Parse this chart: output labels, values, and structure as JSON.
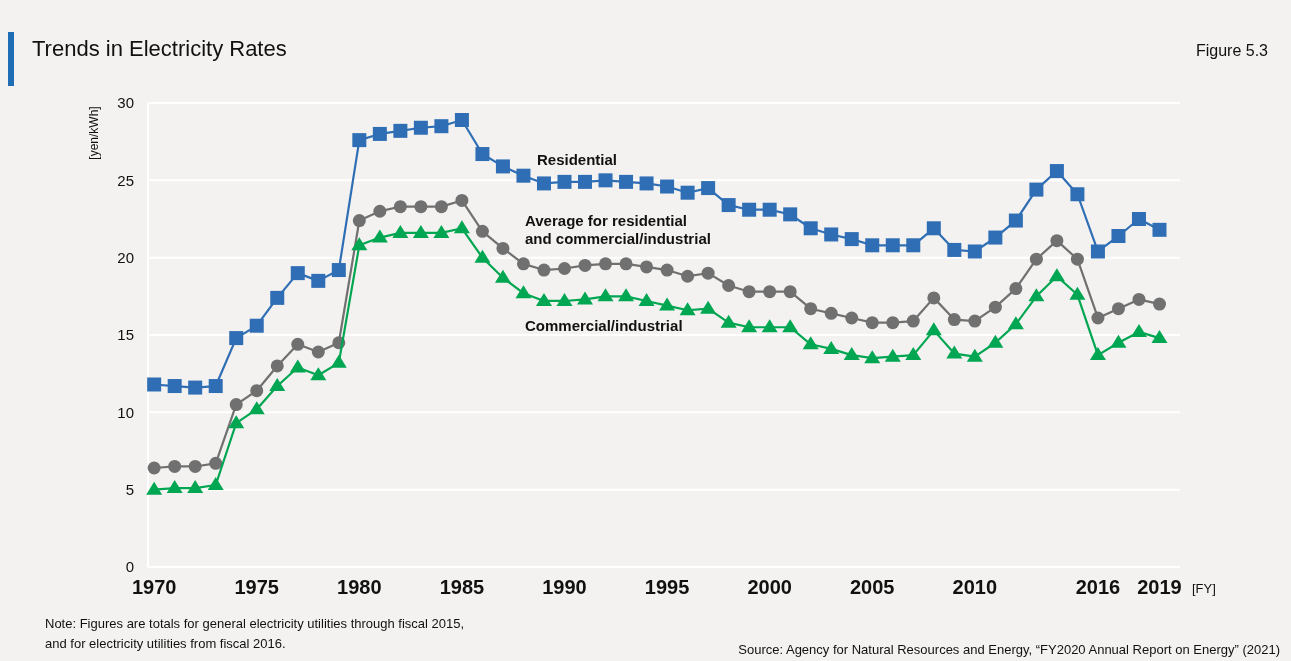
{
  "chart_data": {
    "type": "line",
    "title": "Trends in Electricity Rates",
    "ylabel": "[yen/kWh]",
    "xlabel": "[FY]",
    "annotations": [
      "Figure 5.3",
      "Note: Figures are totals for general electricity utilities through fiscal 2015,\nand for electricity utilities from fiscal 2016.",
      "Source: Agency for Natural Resources and Energy, “FY2020 Annual Report on Energy” (2021)"
    ],
    "x": [
      1970,
      1971,
      1972,
      1973,
      1974,
      1975,
      1976,
      1977,
      1978,
      1979,
      1980,
      1981,
      1982,
      1983,
      1984,
      1985,
      1986,
      1987,
      1988,
      1989,
      1990,
      1991,
      1992,
      1993,
      1994,
      1995,
      1996,
      1997,
      1998,
      1999,
      2000,
      2001,
      2002,
      2003,
      2004,
      2005,
      2006,
      2007,
      2008,
      2009,
      2010,
      2011,
      2012,
      2013,
      2014,
      2015,
      2016,
      2017,
      2018,
      2019
    ],
    "series": [
      {
        "name": "Residential",
        "color": "#2f6eb5",
        "marker": "square",
        "values": [
          11.8,
          11.7,
          11.6,
          11.7,
          14.8,
          15.6,
          17.4,
          19.0,
          18.5,
          19.2,
          27.6,
          28.0,
          28.2,
          28.4,
          28.5,
          28.9,
          26.7,
          25.9,
          25.3,
          24.8,
          24.9,
          24.9,
          25.0,
          24.9,
          24.8,
          24.6,
          24.2,
          24.5,
          23.4,
          23.1,
          23.1,
          22.8,
          21.9,
          21.5,
          21.2,
          20.8,
          20.8,
          20.8,
          21.9,
          20.5,
          20.4,
          21.3,
          22.4,
          24.4,
          25.6,
          24.1,
          20.4,
          21.4,
          22.5,
          21.8
        ]
      },
      {
        "name": "Average for residential\nand commercial/industrial",
        "color": "#707070",
        "marker": "circle",
        "values": [
          6.4,
          6.5,
          6.5,
          6.7,
          10.5,
          11.4,
          13.0,
          14.4,
          13.9,
          14.5,
          22.4,
          23.0,
          23.3,
          23.3,
          23.3,
          23.7,
          21.7,
          20.6,
          19.6,
          19.2,
          19.3,
          19.5,
          19.6,
          19.6,
          19.4,
          19.2,
          18.8,
          19.0,
          18.2,
          17.8,
          17.8,
          17.8,
          16.7,
          16.4,
          16.1,
          15.8,
          15.8,
          15.9,
          17.4,
          16.0,
          15.9,
          16.8,
          18.0,
          19.9,
          21.1,
          19.9,
          16.1,
          16.7,
          17.3,
          17.0
        ]
      },
      {
        "name": "Commercial/industrial",
        "color": "#00a651",
        "marker": "triangle",
        "values": [
          5.0,
          5.1,
          5.1,
          5.3,
          9.3,
          10.2,
          11.7,
          12.9,
          12.4,
          13.2,
          20.8,
          21.3,
          21.6,
          21.6,
          21.6,
          21.9,
          20.0,
          18.7,
          17.7,
          17.2,
          17.2,
          17.3,
          17.5,
          17.5,
          17.2,
          16.9,
          16.6,
          16.7,
          15.8,
          15.5,
          15.5,
          15.5,
          14.4,
          14.1,
          13.7,
          13.5,
          13.6,
          13.7,
          15.3,
          13.8,
          13.6,
          14.5,
          15.7,
          17.5,
          18.8,
          17.6,
          13.7,
          14.5,
          15.2,
          14.8
        ]
      }
    ],
    "xlim": [
      1969.7,
      2020
    ],
    "xticks": [
      1970,
      1975,
      1980,
      1985,
      1990,
      1995,
      2000,
      2005,
      2010,
      2016,
      2019
    ],
    "ylim": [
      0,
      30
    ],
    "yticks": [
      0,
      5,
      10,
      15,
      20,
      25,
      30
    ],
    "grid": "y",
    "line_style": "solid"
  }
}
